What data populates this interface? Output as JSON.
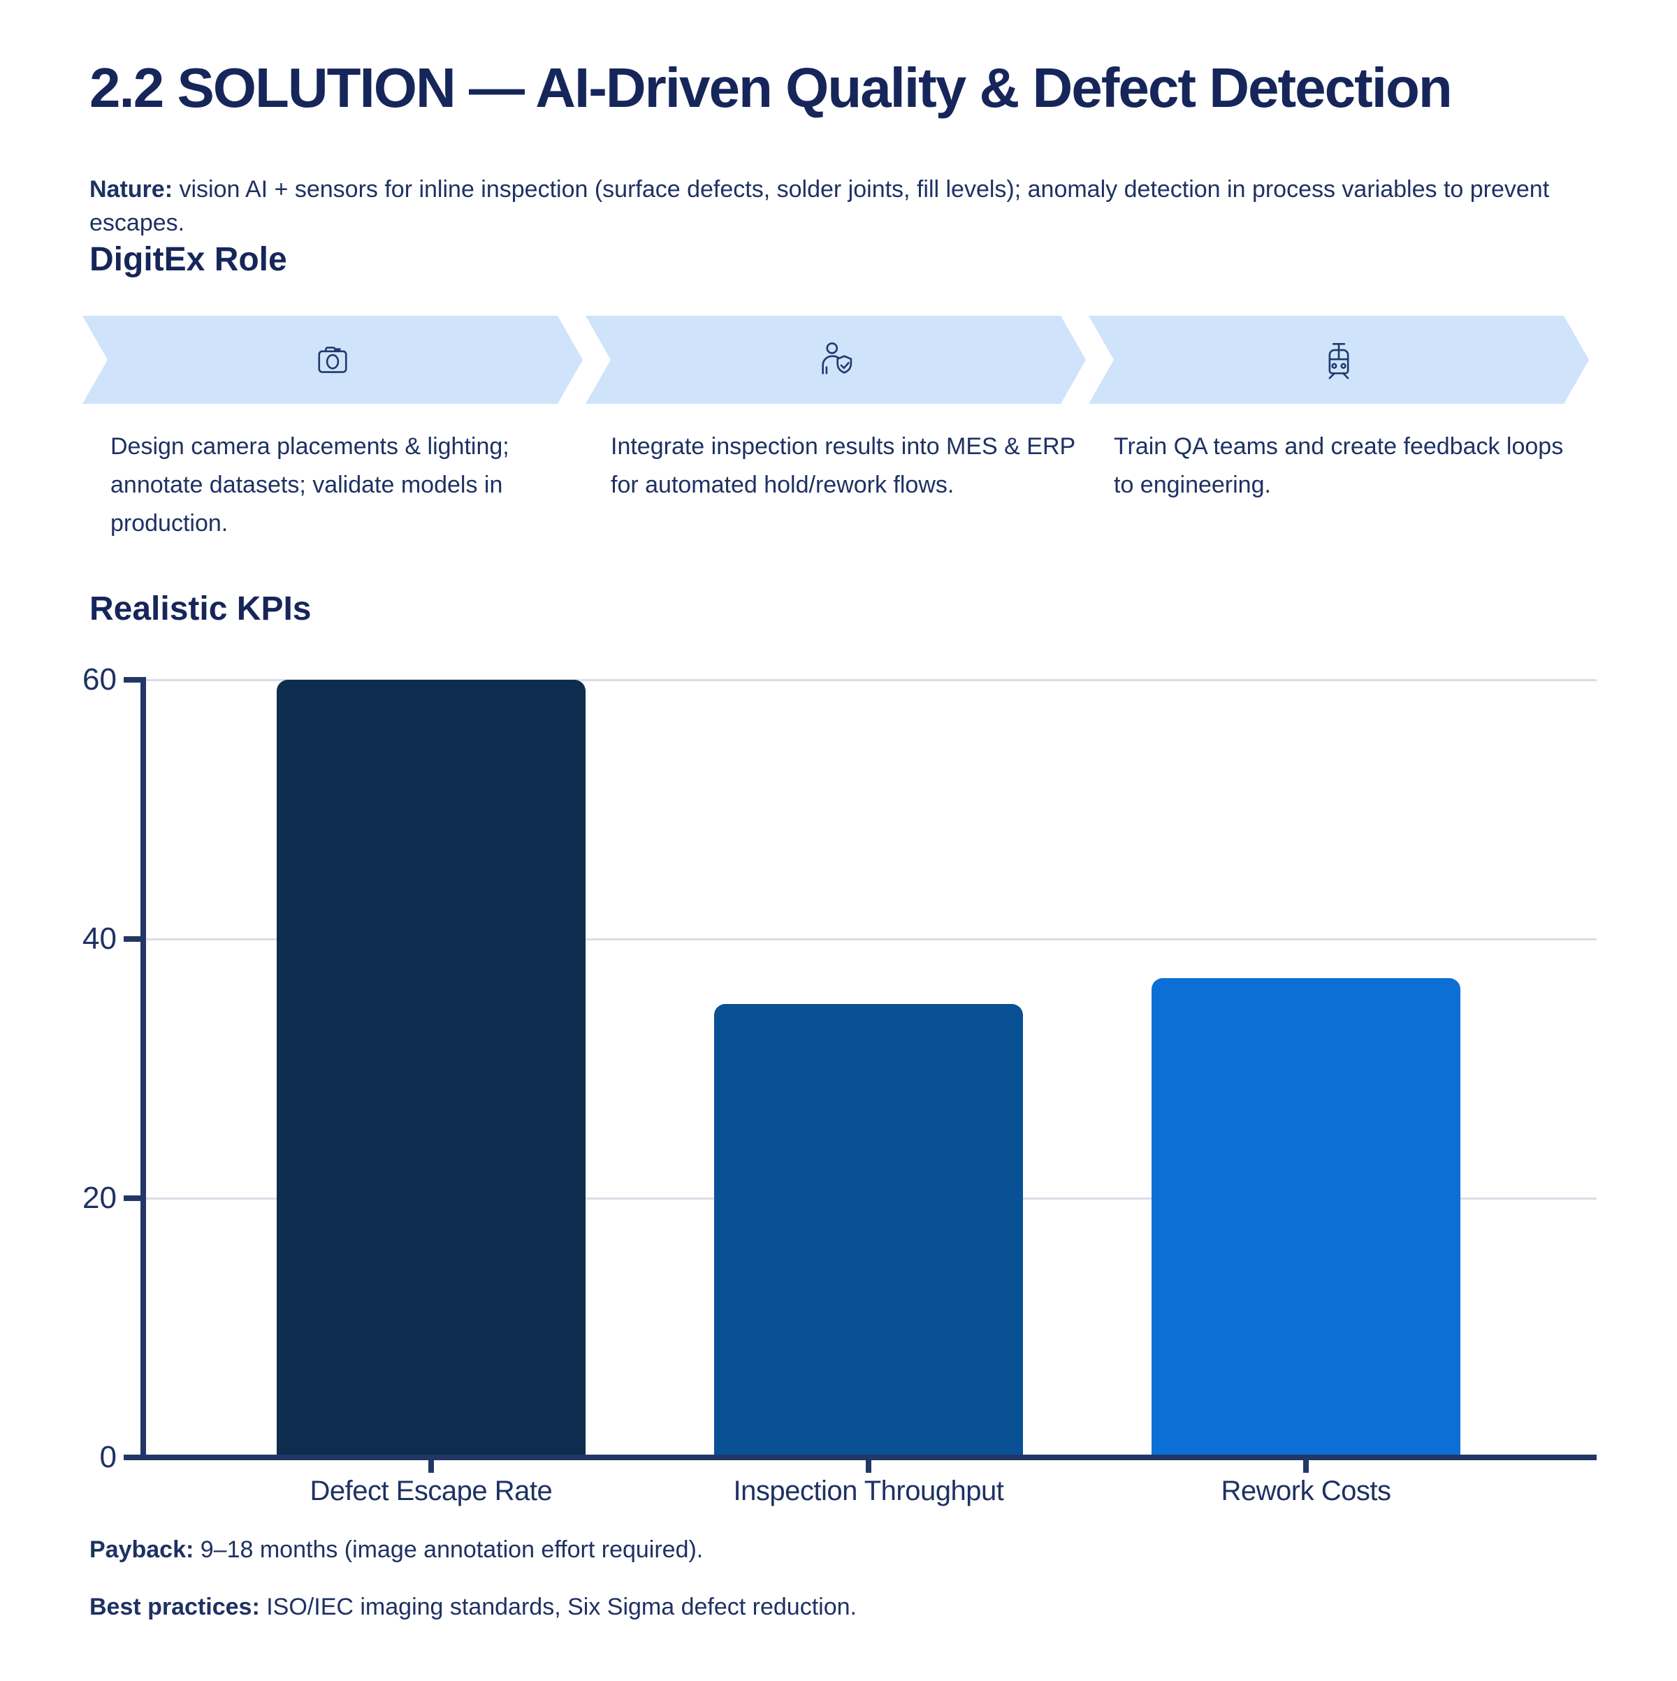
{
  "page": {
    "title": "2.2 SOLUTION — AI-Driven Quality & Defect Detection",
    "nature_label": "Nature:",
    "nature_text": " vision AI + sensors for inline inspection (surface defects, solder joints, fill levels); anomaly detection in process variables to prevent escapes.",
    "role_heading": "DigitEx Role",
    "kpi_heading": "Realistic KPIs",
    "steps": [
      {
        "icon": "camera-icon",
        "text": "Design camera placements & lighting; annotate datasets; validate models in production."
      },
      {
        "icon": "user-shield-icon",
        "text": "Integrate inspection results into MES & ERP for automated hold/rework flows."
      },
      {
        "icon": "train-icon",
        "text": "Train QA teams and create feedback loops to engineering."
      }
    ],
    "payback_label": "Payback:",
    "payback_text": " 9–18 months (image annotation effort required).",
    "best_label": "Best practices:",
    "best_text": " ISO/IEC imaging standards, Six Sigma defect reduction."
  },
  "colors": {
    "heading_navy": "#16265a",
    "text_navy": "#1e3163",
    "axis_navy": "#233767",
    "gridline": "#d9dde6",
    "arrow_fill": "#cfe3fa",
    "icon_stroke": "#1e3a6e"
  },
  "chart_data": {
    "type": "bar",
    "categories": [
      "Defect Escape Rate",
      "Inspection Throughput",
      "Rework Costs"
    ],
    "values": [
      60,
      35,
      37
    ],
    "bar_colors": [
      "#0e2c4e",
      "#0a5094",
      "#0c6fd6"
    ],
    "title": "Realistic KPIs",
    "xlabel": "",
    "ylabel": "",
    "ylim": [
      0,
      60
    ],
    "yticks": [
      0,
      20,
      40,
      60
    ],
    "grid": true,
    "legend": false
  }
}
